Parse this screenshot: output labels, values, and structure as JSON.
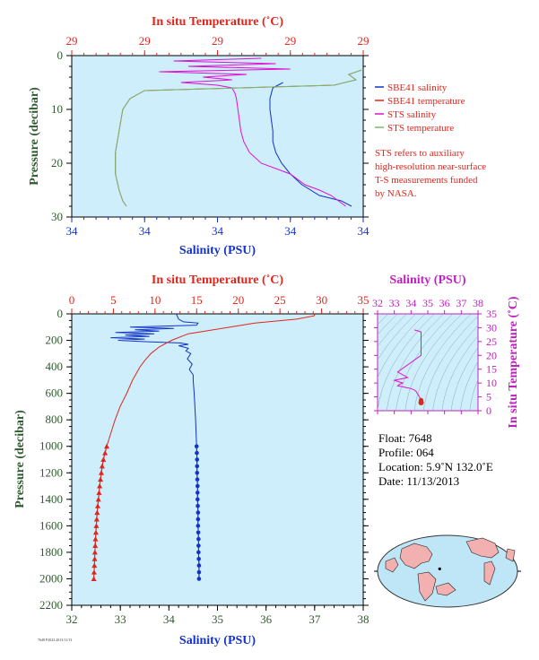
{
  "colors": {
    "plot_bg": "#cdeefa",
    "salinity": "#1433c8",
    "temperature": "#e0261c",
    "sts_salinity": "#e010d0",
    "sts_temperature": "#7ab870",
    "pressure_axis": "#2f5a2f",
    "ts_axis": "#c020c0",
    "axis_black": "#000000"
  },
  "chart_data": [
    {
      "type": "line",
      "title": "",
      "xlabel_bottom": "Salinity (PSU)",
      "xlabel_top": "In situ Temperature (˚C)",
      "ylabel": "Pressure (decibar)",
      "x_bottom_ticks": [
        "34",
        "34",
        "34",
        "34",
        "34"
      ],
      "x_top_ticks": [
        "29",
        "29",
        "29",
        "29",
        "29"
      ],
      "y_ticks": [
        "0",
        "10",
        "20",
        "30"
      ],
      "xlim_salinity": [
        33.9,
        34.1
      ],
      "xlim_temperature": [
        29.1,
        29.5
      ],
      "ylim": [
        30,
        0
      ],
      "series": [
        {
          "name": "SBE41 salinity",
          "axis": "salinity",
          "color": "#1433c8",
          "y": [
            5,
            6,
            8,
            10,
            12,
            14,
            16,
            18,
            20,
            22,
            24,
            26,
            27,
            28
          ],
          "x": [
            34.045,
            34.038,
            34.036,
            34.036,
            34.037,
            34.038,
            34.038,
            34.04,
            34.044,
            34.05,
            34.058,
            34.07,
            34.085,
            34.092
          ]
        },
        {
          "name": "SBE41 temperature",
          "axis": "temperature",
          "color": "#e0261c",
          "y": [
            2.7,
            3.5,
            4.5,
            5.5,
            6.5,
            8,
            10,
            14,
            18,
            22,
            25,
            27,
            28
          ],
          "x": [
            29.5,
            29.48,
            29.49,
            29.46,
            29.2,
            29.18,
            29.17,
            29.165,
            29.16,
            29.16,
            29.165,
            29.17,
            29.175
          ]
        },
        {
          "name": "STS salinity",
          "axis": "salinity",
          "color": "#e010d0",
          "y": [
            0.5,
            1,
            1.5,
            2,
            2.5,
            3,
            3.5,
            4,
            4.5,
            5,
            5.5,
            6,
            7,
            8,
            10,
            12,
            14,
            16,
            18,
            20,
            22,
            24,
            25,
            26,
            27,
            28
          ],
          "x": [
            34.03,
            33.97,
            34.04,
            33.98,
            34.05,
            33.96,
            34.02,
            33.99,
            34.01,
            33.975,
            34.0,
            34.01,
            34.012,
            34.013,
            34.014,
            34.015,
            34.016,
            34.018,
            34.022,
            34.03,
            34.05,
            34.06,
            34.07,
            34.078,
            34.083,
            34.088
          ]
        },
        {
          "name": "STS temperature",
          "axis": "temperature",
          "color": "#7ab870",
          "y": [
            2.7,
            3.5,
            4.5,
            5.5,
            6.5,
            8,
            10,
            14,
            18,
            22,
            25,
            27,
            28
          ],
          "x": [
            29.5,
            29.48,
            29.49,
            29.46,
            29.2,
            29.18,
            29.17,
            29.165,
            29.16,
            29.16,
            29.165,
            29.17,
            29.175
          ]
        }
      ],
      "legend": [
        "SBE41 salinity",
        "SBE41 temperature",
        "STS salinity",
        "STS temperature"
      ],
      "legend_placement": "right",
      "annotation": [
        "STS refers to auxiliary",
        "high-resolution near-surface",
        "T-S measurements funded",
        "by NASA."
      ],
      "grid": false
    },
    {
      "type": "line",
      "title": "",
      "xlabel_bottom": "Salinity (PSU)",
      "xlabel_top": "In situ Temperature (˚C)",
      "ylabel": "Pressure (decibar)",
      "x_bottom_ticks": [
        "32",
        "33",
        "34",
        "35",
        "36",
        "37",
        "38"
      ],
      "x_top_ticks": [
        "0",
        "5",
        "10",
        "15",
        "20",
        "25",
        "30",
        "35"
      ],
      "y_ticks": [
        "0",
        "200",
        "400",
        "600",
        "800",
        "1000",
        "1200",
        "1400",
        "1600",
        "1800",
        "2000",
        "2200"
      ],
      "xlim_salinity": [
        32,
        38
      ],
      "xlim_temperature": [
        0,
        35
      ],
      "ylim": [
        2200,
        0
      ],
      "series": [
        {
          "name": "Salinity",
          "axis": "salinity",
          "color": "#1433c8",
          "y": [
            0,
            40,
            60,
            70,
            85,
            100,
            110,
            120,
            130,
            140,
            150,
            160,
            170,
            180,
            190,
            200,
            210,
            220,
            230,
            240,
            260,
            280,
            300,
            340,
            380,
            420,
            460,
            500,
            600,
            800,
            1000,
            1100,
            1200,
            1300,
            1400,
            1500,
            1600,
            1700,
            1800,
            1900,
            2000
          ],
          "x": [
            34.15,
            34.2,
            34.3,
            34.6,
            34.57,
            33.2,
            34.1,
            33.3,
            33.8,
            32.9,
            33.7,
            33.1,
            33.6,
            32.8,
            33.5,
            32.95,
            33.5,
            34.25,
            34.4,
            34.2,
            34.4,
            34.35,
            34.45,
            34.38,
            34.48,
            34.42,
            34.5,
            34.5,
            34.52,
            34.55,
            34.57,
            34.58,
            34.58,
            34.59,
            34.59,
            34.6,
            34.6,
            34.61,
            34.61,
            34.62,
            34.62
          ]
        },
        {
          "name": "Temperature",
          "axis": "temperature",
          "color": "#e0261c",
          "y": [
            0,
            15,
            40,
            70,
            100,
            150,
            200,
            250,
            300,
            350,
            400,
            500,
            600,
            700,
            800,
            900,
            1000,
            1100,
            1200,
            1300,
            1400,
            1500,
            1600,
            1700,
            1800,
            1900,
            2000
          ],
          "x": [
            29.2,
            29.1,
            27,
            22,
            19,
            14,
            12,
            10.5,
            9.5,
            8.8,
            8.2,
            7.3,
            6.6,
            5.8,
            5.2,
            4.7,
            4.2,
            3.8,
            3.55,
            3.35,
            3.2,
            3.05,
            2.95,
            2.85,
            2.78,
            2.72,
            2.65
          ]
        },
        {
          "name": "Salinity markers",
          "axis": "salinity",
          "color": "#1433c8",
          "marker": "circle",
          "y": [
            1000,
            1050,
            1100,
            1150,
            1200,
            1250,
            1300,
            1350,
            1400,
            1450,
            1500,
            1550,
            1600,
            1650,
            1700,
            1750,
            1800,
            1850,
            1900,
            1950,
            2000
          ],
          "x": [
            34.57,
            34.575,
            34.58,
            34.58,
            34.58,
            34.585,
            34.59,
            34.59,
            34.59,
            34.595,
            34.6,
            34.6,
            34.6,
            34.605,
            34.61,
            34.61,
            34.61,
            34.615,
            34.62,
            34.62,
            34.62
          ]
        },
        {
          "name": "Temperature markers",
          "axis": "temperature",
          "color": "#e0261c",
          "marker": "triangle",
          "y": [
            1000,
            1050,
            1100,
            1150,
            1200,
            1250,
            1300,
            1350,
            1400,
            1450,
            1500,
            1550,
            1600,
            1650,
            1700,
            1750,
            1800,
            1850,
            1900,
            1950,
            2000
          ],
          "x": [
            4.2,
            4.0,
            3.8,
            3.65,
            3.55,
            3.45,
            3.35,
            3.28,
            3.2,
            3.12,
            3.05,
            3.0,
            2.95,
            2.9,
            2.85,
            2.82,
            2.78,
            2.75,
            2.72,
            2.68,
            2.65
          ]
        }
      ],
      "grid": false
    },
    {
      "type": "scatter",
      "title": "",
      "xlabel_top": "Salinity (PSU)",
      "ylabel": "In situ Temperature (˚C)",
      "x_ticks": [
        "32",
        "33",
        "34",
        "35",
        "36",
        "37",
        "38"
      ],
      "y_ticks": [
        "0",
        "5",
        "10",
        "15",
        "20",
        "25",
        "30",
        "35"
      ],
      "xlim": [
        32,
        38
      ],
      "ylim": [
        0,
        35
      ],
      "series": [
        {
          "name": "T-S",
          "color": "#e010d0",
          "x": [
            34.2,
            34.6,
            34.6,
            33.2,
            33.8,
            33.0,
            33.5,
            33.3,
            33.2,
            33.6,
            34.0,
            34.2,
            34.3,
            34.4,
            34.5,
            34.55,
            34.6,
            34.6
          ],
          "y": [
            29.2,
            28.5,
            20,
            14,
            12,
            11,
            10,
            9.5,
            9,
            8.5,
            8,
            7.5,
            7,
            6,
            5,
            4.2,
            3.5,
            2.7
          ]
        }
      ],
      "grid": false,
      "density_contours": true
    }
  ],
  "float_info": {
    "float": "Float:  7648",
    "profile": "Profile:  064",
    "location": "Location:  5.9˚N  132.0˚E",
    "date": "Date:  11/13/2013"
  },
  "map": {
    "marker_lat": 5.9,
    "marker_lon": 132.0
  },
  "footer_small": "7648 P2023 2013/11/13"
}
